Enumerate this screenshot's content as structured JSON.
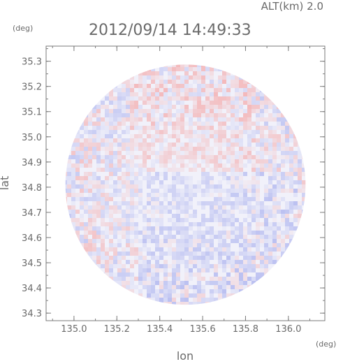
{
  "header": {
    "altitude": "ALT(km) 2.0",
    "timestamp": "2012/09/14 14:49:33"
  },
  "chart_data": {
    "type": "heatmap",
    "title": "2012/09/14 14:49:33",
    "subtitle": "ALT(km) 2.0",
    "xlabel": "lon",
    "ylabel": "lat",
    "x_unit": "(deg)",
    "y_unit": "(deg)",
    "xlim": [
      134.87,
      136.17
    ],
    "ylim": [
      34.27,
      35.36
    ],
    "x_ticks": [
      "135.0",
      "135.2",
      "135.4",
      "135.6",
      "135.8",
      "136.0"
    ],
    "y_ticks": [
      "35.3",
      "35.2",
      "35.1",
      "35.0",
      "34.9",
      "34.8",
      "34.7",
      "34.6",
      "34.5",
      "34.4",
      "34.3"
    ],
    "range_circle": {
      "center_lon": 135.52,
      "center_lat": 34.81,
      "radius_deg": 0.56
    },
    "colors": {
      "positive": "#f4a6a6",
      "negative": "#a9b0ee",
      "background": "#f1f1fa"
    },
    "grid": false
  }
}
